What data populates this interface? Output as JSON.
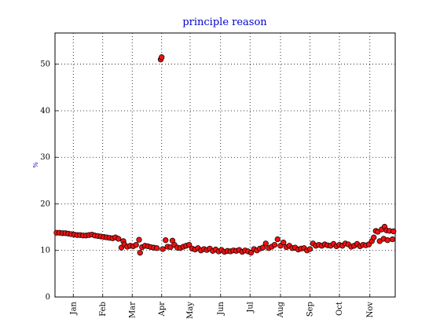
{
  "chart_data": {
    "type": "scatter",
    "title": "principle reason",
    "y_label": "%",
    "xlim": [
      -1.6,
      344.8
    ],
    "ylim": [
      0,
      56.7
    ],
    "xticks": [
      {
        "value": 17,
        "label": "Jan"
      },
      {
        "value": 47,
        "label": "Feb"
      },
      {
        "value": 77,
        "label": "Mar"
      },
      {
        "value": 107,
        "label": "Apr"
      },
      {
        "value": 136,
        "label": "May"
      },
      {
        "value": 167,
        "label": "Jun"
      },
      {
        "value": 197,
        "label": "Jul"
      },
      {
        "value": 228,
        "label": "Aug"
      },
      {
        "value": 258,
        "label": "Sep"
      },
      {
        "value": 288,
        "label": "Oct"
      },
      {
        "value": 319,
        "label": "Nov"
      }
    ],
    "yticks": [
      0,
      10,
      20,
      30,
      40,
      50
    ],
    "grid": true,
    "series": [
      {
        "color": "#ee1111",
        "x": [
          0,
          3,
          6,
          9,
          12,
          15,
          18,
          21,
          24,
          27,
          30,
          33,
          36,
          39,
          42,
          45,
          48,
          51,
          54,
          57,
          60,
          63,
          66,
          68,
          69,
          72,
          75,
          78,
          81,
          84,
          85,
          87,
          90,
          93,
          96,
          99,
          102,
          106,
          107,
          108,
          111,
          113,
          116,
          118,
          120,
          123,
          126,
          129,
          132,
          135,
          138,
          141,
          144,
          147,
          150,
          153,
          156,
          159,
          162,
          165,
          168,
          171,
          174,
          177,
          180,
          183,
          186,
          189,
          192,
          195,
          198,
          201,
          204,
          207,
          210,
          213,
          216,
          219,
          222,
          225,
          228,
          231,
          234,
          237,
          240,
          243,
          246,
          249,
          252,
          255,
          258,
          261,
          264,
          267,
          270,
          273,
          276,
          279,
          282,
          285,
          288,
          291,
          294,
          297,
          300,
          303,
          306,
          309,
          312,
          315,
          318,
          321,
          323,
          325,
          327,
          329,
          331,
          333,
          334,
          336,
          337,
          339,
          342,
          343
        ],
        "values": [
          13.8,
          13.8,
          13.7,
          13.7,
          13.6,
          13.5,
          13.4,
          13.3,
          13.3,
          13.2,
          13.2,
          13.3,
          13.4,
          13.2,
          13.1,
          13.0,
          12.9,
          12.8,
          12.7,
          12.6,
          12.8,
          12.5,
          10.6,
          12.0,
          11.3,
          10.8,
          11.0,
          10.9,
          11.2,
          12.3,
          9.5,
          10.7,
          11.0,
          10.9,
          10.7,
          10.6,
          10.5,
          51.0,
          51.5,
          10.3,
          12.2,
          10.8,
          10.7,
          12.1,
          11.2,
          10.6,
          10.5,
          10.8,
          11.0,
          11.2,
          10.4,
          10.2,
          10.5,
          10.0,
          10.3,
          10.1,
          10.4,
          9.9,
          10.2,
          9.8,
          10.1,
          9.7,
          9.9,
          9.8,
          10.0,
          9.9,
          10.1,
          9.7,
          10.0,
          9.8,
          9.5,
          10.3,
          10.0,
          10.4,
          10.6,
          11.5,
          10.5,
          10.8,
          11.2,
          12.4,
          11.0,
          11.7,
          10.7,
          11.0,
          10.5,
          10.6,
          10.2,
          10.4,
          10.5,
          10.0,
          10.3,
          11.5,
          11.0,
          11.2,
          11.0,
          11.3,
          11.1,
          11.0,
          11.4,
          10.9,
          11.2,
          11.0,
          11.5,
          11.3,
          10.8,
          11.0,
          11.4,
          10.9,
          11.2,
          11.1,
          11.3,
          12.0,
          12.8,
          14.2,
          14.0,
          12.0,
          14.5,
          12.5,
          15.1,
          14.3,
          12.2,
          14.2,
          12.4,
          14.1
        ]
      }
    ]
  }
}
